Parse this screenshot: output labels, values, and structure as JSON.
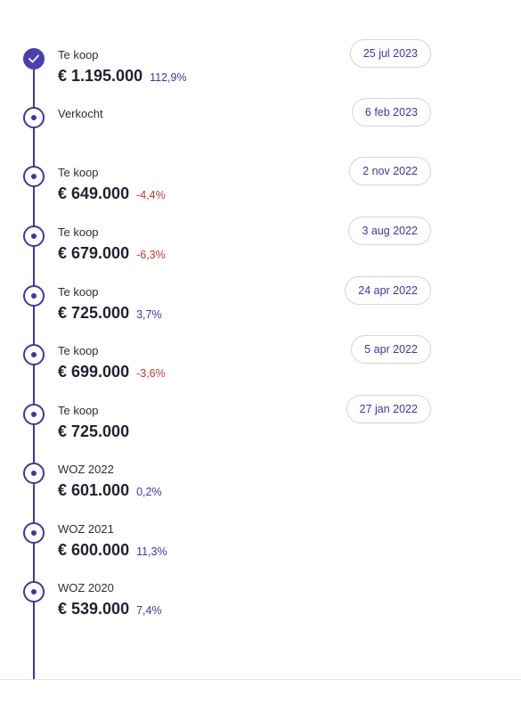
{
  "history": [
    {
      "label": "Te koop",
      "price": "€ 1.195.000",
      "change": "112,9%",
      "direction": "up",
      "date": "25 jul 2023",
      "status": "done"
    },
    {
      "label": "Verkocht",
      "price": "",
      "change": "",
      "direction": "",
      "date": "6 feb 2023",
      "status": "event"
    },
    {
      "label": "Te koop",
      "price": "€ 649.000",
      "change": "-4,4%",
      "direction": "down",
      "date": "2 nov 2022",
      "status": "event"
    },
    {
      "label": "Te koop",
      "price": "€ 679.000",
      "change": "-6,3%",
      "direction": "down",
      "date": "3 aug 2022",
      "status": "event"
    },
    {
      "label": "Te koop",
      "price": "€ 725.000",
      "change": "3,7%",
      "direction": "up",
      "date": "24 apr 2022",
      "status": "event"
    },
    {
      "label": "Te koop",
      "price": "€ 699.000",
      "change": "-3,6%",
      "direction": "down",
      "date": "5 apr 2022",
      "status": "event"
    },
    {
      "label": "Te koop",
      "price": "€ 725.000",
      "change": "",
      "direction": "",
      "date": "27 jan 2022",
      "status": "event"
    },
    {
      "label": "WOZ 2022",
      "price": "€ 601.000",
      "change": "0,2%",
      "direction": "up",
      "date": "",
      "status": "event"
    },
    {
      "label": "WOZ 2021",
      "price": "€ 600.000",
      "change": "11,3%",
      "direction": "up",
      "date": "",
      "status": "event"
    },
    {
      "label": "WOZ 2020",
      "price": "€ 539.000",
      "change": "7,4%",
      "direction": "up",
      "date": "",
      "status": "event"
    }
  ],
  "icons": {
    "done": "check-icon",
    "event": "dot-icon"
  },
  "colors": {
    "accent": "#3f35a6",
    "negative": "#c9372c",
    "text": "#1f2230"
  }
}
